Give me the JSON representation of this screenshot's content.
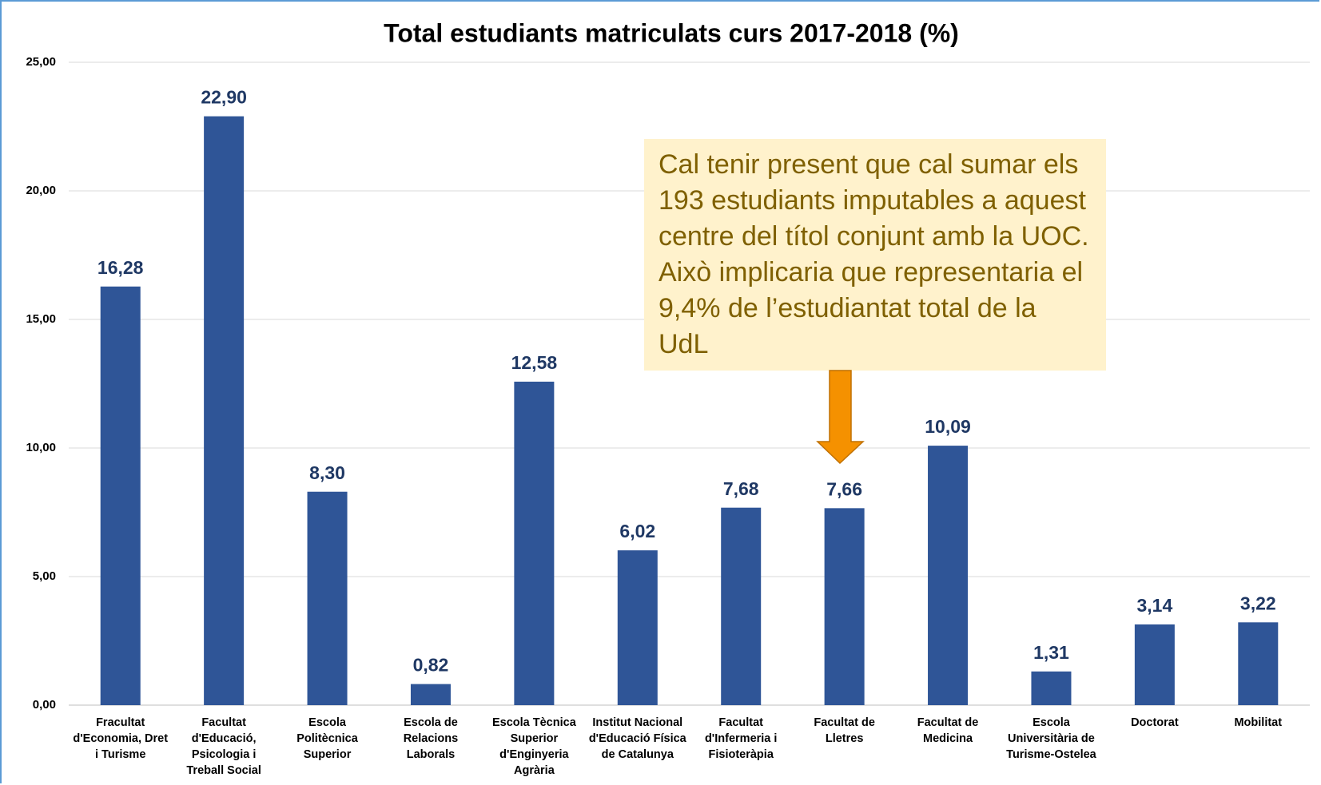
{
  "chart_data": {
    "type": "bar",
    "title": "Total estudiants matriculats curs 2017-2018 (%)",
    "categories": [
      "Fracultat d'Economia, Dret i Turisme",
      "Facultat d'Educació, Psicologia i Treball Social",
      "Escola Politècnica Superior",
      "Escola de Relacions Laborals",
      "Escola Tècnica Superior d'Enginyeria Agrària",
      "Institut Nacional d'Educació Física de Catalunya",
      "Facultat d'Infermeria i Fisioteràpia",
      "Facultat de Lletres",
      "Facultat de Medicina",
      "Escola Universitària de Turisme-Ostelea",
      "Doctorat",
      "Mobilitat"
    ],
    "values": [
      16.28,
      22.9,
      8.3,
      0.82,
      12.58,
      6.02,
      7.68,
      7.66,
      10.09,
      1.31,
      3.14,
      3.22
    ],
    "value_labels": [
      "16,28",
      "22,90",
      "8,30",
      "0,82",
      "12,58",
      "6,02",
      "7,68",
      "7,66",
      "10,09",
      "1,31",
      "3,14",
      "3,22"
    ],
    "color": "#2f5597",
    "ylim": [
      0,
      25
    ],
    "yticks": [
      {
        "value": 0,
        "label": "0,00"
      },
      {
        "value": 5,
        "label": "5,00"
      },
      {
        "value": 10,
        "label": "10,00"
      },
      {
        "value": 15,
        "label": "15,00"
      },
      {
        "value": 20,
        "label": "20,00"
      },
      {
        "value": 25,
        "label": "25,00"
      }
    ],
    "grid": true,
    "annotation": "Cal tenir present que cal sumar els 193 estudiants imputables a aquest centre del títol conjunt amb la UOC. Això implicaria que representaria el 9,4% de l’estudiantat total de la UdL"
  }
}
